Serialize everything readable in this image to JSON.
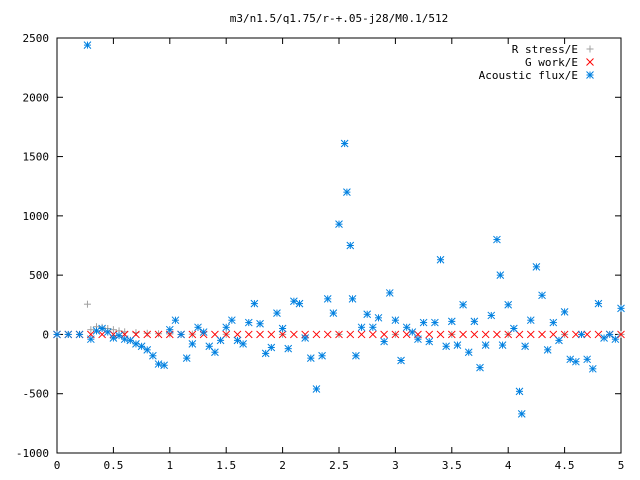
{
  "chart_data": {
    "type": "scatter",
    "title": "m3/n1.5/q1.75/r-+.05-j28/M0.1/512",
    "xlabel": "",
    "ylabel": "",
    "xlim": [
      0,
      5
    ],
    "ylim": [
      -1000,
      2500
    ],
    "x_ticks": [
      0,
      0.5,
      1,
      1.5,
      2,
      2.5,
      3,
      3.5,
      4,
      4.5,
      5
    ],
    "x_tick_labels": [
      "0",
      "0.5",
      "1",
      "1.5",
      "2",
      "2.5",
      "3",
      "3.5",
      "4",
      "4.5",
      "5"
    ],
    "y_ticks": [
      -1000,
      -500,
      0,
      500,
      1000,
      1500,
      2000,
      2500
    ],
    "y_tick_labels": [
      "-1000",
      "-500",
      "0",
      "500",
      "1000",
      "1500",
      "2000",
      "2500"
    ],
    "grid": false,
    "legend_position": "top-right",
    "series": [
      {
        "name": "R stress/E",
        "color": "#a0a0a0",
        "marker": "plus",
        "points": [
          [
            0.0,
            0
          ],
          [
            0.1,
            0
          ],
          [
            0.2,
            0
          ],
          [
            0.27,
            255
          ],
          [
            0.3,
            40
          ],
          [
            0.35,
            65
          ],
          [
            0.4,
            60
          ],
          [
            0.45,
            50
          ],
          [
            0.5,
            40
          ],
          [
            0.55,
            30
          ],
          [
            0.6,
            22
          ],
          [
            0.7,
            15
          ],
          [
            0.8,
            10
          ],
          [
            0.9,
            6
          ],
          [
            1.0,
            4
          ],
          [
            1.2,
            2
          ],
          [
            1.5,
            1
          ],
          [
            2.0,
            0
          ],
          [
            2.5,
            0
          ],
          [
            3.0,
            0
          ],
          [
            3.5,
            0
          ],
          [
            4.0,
            0
          ],
          [
            4.5,
            0
          ],
          [
            5.0,
            0
          ]
        ]
      },
      {
        "name": "G work/E",
        "color": "#ff0000",
        "marker": "cross",
        "points": [
          [
            0.0,
            0
          ],
          [
            0.1,
            0
          ],
          [
            0.2,
            0
          ],
          [
            0.3,
            0
          ],
          [
            0.4,
            0
          ],
          [
            0.5,
            0
          ],
          [
            0.6,
            0
          ],
          [
            0.7,
            0
          ],
          [
            0.8,
            0
          ],
          [
            0.9,
            0
          ],
          [
            1.0,
            0
          ],
          [
            1.1,
            0
          ],
          [
            1.2,
            0
          ],
          [
            1.3,
            0
          ],
          [
            1.4,
            0
          ],
          [
            1.5,
            0
          ],
          [
            1.6,
            0
          ],
          [
            1.7,
            0
          ],
          [
            1.8,
            0
          ],
          [
            1.9,
            0
          ],
          [
            2.0,
            0
          ],
          [
            2.1,
            0
          ],
          [
            2.2,
            0
          ],
          [
            2.3,
            0
          ],
          [
            2.4,
            0
          ],
          [
            2.5,
            0
          ],
          [
            2.6,
            0
          ],
          [
            2.7,
            0
          ],
          [
            2.8,
            0
          ],
          [
            2.9,
            0
          ],
          [
            3.0,
            0
          ],
          [
            3.1,
            0
          ],
          [
            3.2,
            0
          ],
          [
            3.3,
            0
          ],
          [
            3.4,
            0
          ],
          [
            3.5,
            0
          ],
          [
            3.6,
            0
          ],
          [
            3.7,
            0
          ],
          [
            3.8,
            0
          ],
          [
            3.9,
            0
          ],
          [
            4.0,
            0
          ],
          [
            4.1,
            0
          ],
          [
            4.2,
            0
          ],
          [
            4.3,
            0
          ],
          [
            4.4,
            0
          ],
          [
            4.5,
            0
          ],
          [
            4.6,
            0
          ],
          [
            4.7,
            0
          ],
          [
            4.8,
            0
          ],
          [
            4.9,
            0
          ],
          [
            5.0,
            0
          ]
        ]
      },
      {
        "name": "Acoustic flux/E",
        "color": "#0080e0",
        "marker": "star",
        "points": [
          [
            0.0,
            0
          ],
          [
            0.1,
            0
          ],
          [
            0.2,
            0
          ],
          [
            0.27,
            2440
          ],
          [
            0.3,
            -40
          ],
          [
            0.35,
            30
          ],
          [
            0.4,
            50
          ],
          [
            0.45,
            20
          ],
          [
            0.5,
            -30
          ],
          [
            0.55,
            -10
          ],
          [
            0.6,
            -40
          ],
          [
            0.65,
            -50
          ],
          [
            0.7,
            -80
          ],
          [
            0.75,
            -100
          ],
          [
            0.8,
            -130
          ],
          [
            0.85,
            -180
          ],
          [
            0.9,
            -250
          ],
          [
            0.95,
            -260
          ],
          [
            1.0,
            40
          ],
          [
            1.05,
            120
          ],
          [
            1.1,
            0
          ],
          [
            1.15,
            -200
          ],
          [
            1.2,
            -80
          ],
          [
            1.25,
            60
          ],
          [
            1.3,
            20
          ],
          [
            1.35,
            -100
          ],
          [
            1.4,
            -150
          ],
          [
            1.45,
            -50
          ],
          [
            1.5,
            60
          ],
          [
            1.55,
            120
          ],
          [
            1.6,
            -50
          ],
          [
            1.65,
            -80
          ],
          [
            1.7,
            100
          ],
          [
            1.75,
            260
          ],
          [
            1.8,
            90
          ],
          [
            1.85,
            -160
          ],
          [
            1.9,
            -110
          ],
          [
            1.95,
            180
          ],
          [
            2.0,
            50
          ],
          [
            2.05,
            -120
          ],
          [
            2.1,
            280
          ],
          [
            2.15,
            260
          ],
          [
            2.2,
            -30
          ],
          [
            2.25,
            -200
          ],
          [
            2.3,
            -460
          ],
          [
            2.35,
            -180
          ],
          [
            2.4,
            300
          ],
          [
            2.45,
            180
          ],
          [
            2.5,
            930
          ],
          [
            2.55,
            1610
          ],
          [
            2.57,
            1200
          ],
          [
            2.6,
            750
          ],
          [
            2.62,
            300
          ],
          [
            2.65,
            -180
          ],
          [
            2.7,
            60
          ],
          [
            2.75,
            170
          ],
          [
            2.8,
            60
          ],
          [
            2.85,
            140
          ],
          [
            2.9,
            -60
          ],
          [
            2.95,
            350
          ],
          [
            3.0,
            120
          ],
          [
            3.05,
            -220
          ],
          [
            3.1,
            60
          ],
          [
            3.15,
            20
          ],
          [
            3.2,
            -40
          ],
          [
            3.25,
            100
          ],
          [
            3.3,
            -60
          ],
          [
            3.35,
            100
          ],
          [
            3.4,
            630
          ],
          [
            3.45,
            -100
          ],
          [
            3.5,
            110
          ],
          [
            3.55,
            -90
          ],
          [
            3.6,
            250
          ],
          [
            3.65,
            -150
          ],
          [
            3.7,
            110
          ],
          [
            3.75,
            -280
          ],
          [
            3.8,
            -90
          ],
          [
            3.85,
            160
          ],
          [
            3.9,
            800
          ],
          [
            3.93,
            500
          ],
          [
            3.95,
            -90
          ],
          [
            4.0,
            250
          ],
          [
            4.05,
            50
          ],
          [
            4.1,
            -480
          ],
          [
            4.12,
            -670
          ],
          [
            4.15,
            -100
          ],
          [
            4.2,
            120
          ],
          [
            4.25,
            570
          ],
          [
            4.3,
            330
          ],
          [
            4.35,
            -130
          ],
          [
            4.4,
            100
          ],
          [
            4.45,
            -50
          ],
          [
            4.5,
            190
          ],
          [
            4.55,
            -210
          ],
          [
            4.6,
            -230
          ],
          [
            4.65,
            0
          ],
          [
            4.7,
            -210
          ],
          [
            4.75,
            -290
          ],
          [
            4.8,
            260
          ],
          [
            4.85,
            -30
          ],
          [
            4.9,
            0
          ],
          [
            4.95,
            -40
          ],
          [
            5.0,
            220
          ]
        ]
      }
    ]
  }
}
